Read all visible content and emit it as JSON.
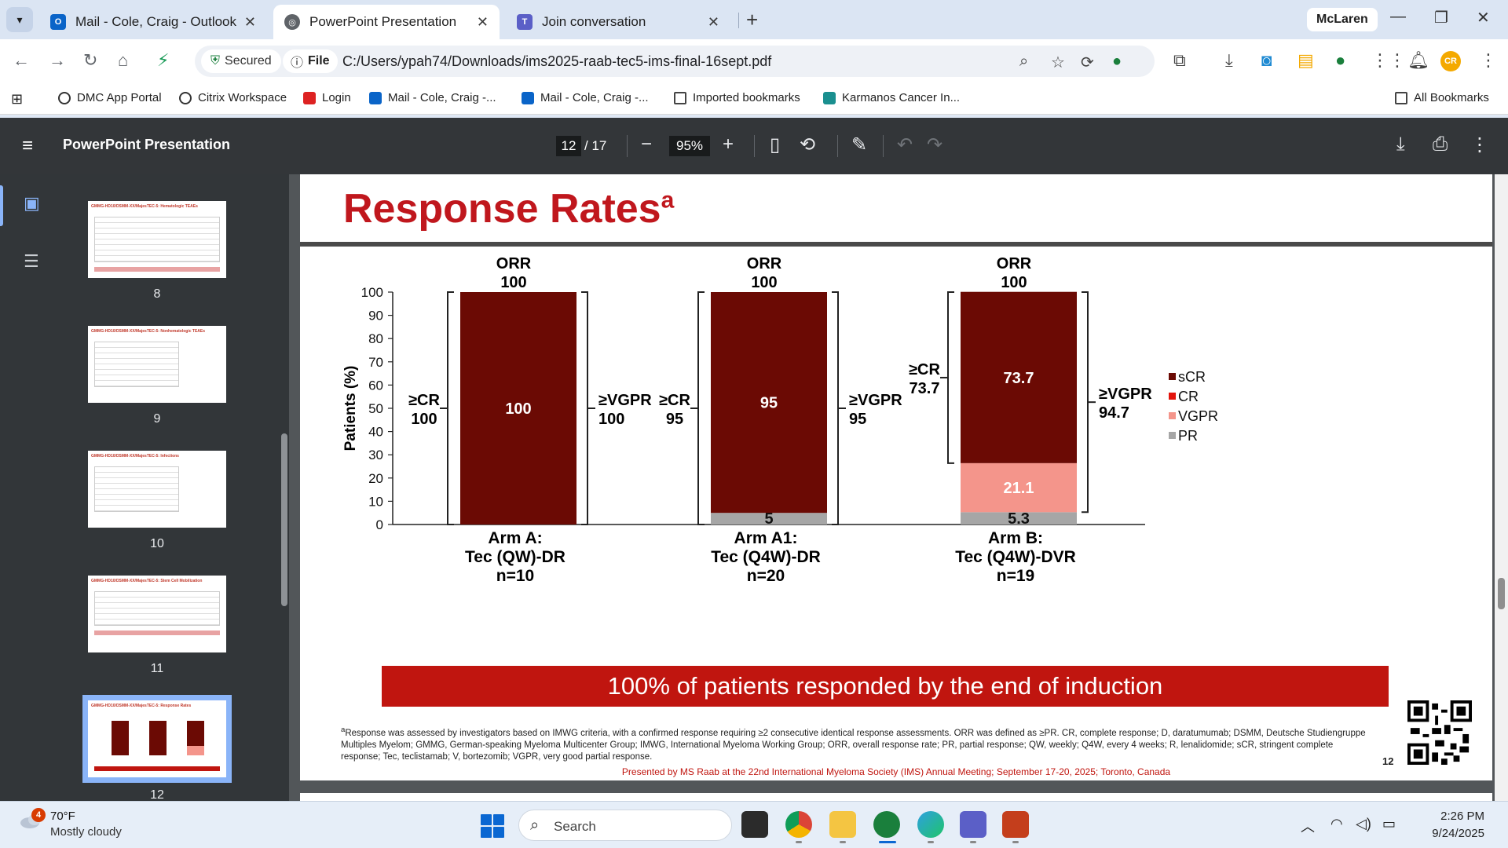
{
  "browser": {
    "tabs": [
      {
        "label": "Mail - Cole, Craig - Outlook",
        "icon": "outlook-icon"
      },
      {
        "label": "PowerPoint Presentation",
        "icon": "globe-icon"
      },
      {
        "label": "Join conversation",
        "icon": "teams-icon"
      }
    ],
    "profile": "McLaren",
    "security": "Secured",
    "scheme": "File",
    "url": "C:/Users/ypah74/Downloads/ims2025-raab-tec5-ims-final-16sept.pdf",
    "avatar": "CR",
    "bookmarks": [
      "DMC App Portal",
      "Citrix Workspace",
      "Login",
      "Mail - Cole, Craig -...",
      "Mail - Cole, Craig -...",
      "Imported bookmarks",
      "Karmanos Cancer In..."
    ],
    "all_bookmarks": "All Bookmarks"
  },
  "pdf": {
    "title": "PowerPoint Presentation",
    "page": "12",
    "total": "/ 17",
    "zoom": "95%",
    "thumbnails": [
      {
        "num": "8",
        "title": "GMMG-HD10/DSMM-XX/MajesTEC-5: Hematologic TEAEs"
      },
      {
        "num": "9",
        "title": "GMMG-HD10/DSMM-XX/MajesTEC-5: Nonhematologic TEAEs"
      },
      {
        "num": "10",
        "title": "GMMG-HD10/DSMM-XX/MajesTEC-5: Infections"
      },
      {
        "num": "11",
        "title": "GMMG-HD10/DSMM-XX/MajesTEC-5: Stem Cell Mobilization"
      },
      {
        "num": "12",
        "title": "GMMG-HD10/DSMM-XX/MajesTEC-5: Response Rates"
      }
    ]
  },
  "slide": {
    "title": "Response Rates",
    "title_sup": "a",
    "banner": "100% of patients responded by the end of induction",
    "footnote_sup": "a",
    "footnote": "Response was assessed by investigators based on IMWG criteria, with a confirmed response requiring ≥2 consecutive identical response assessments. ORR was defined as ≥PR. CR, complete response; D, daratumumab; DSMM, Deutsche Studiengruppe Multiples Myelom; GMMG, German-speaking Myeloma Multicenter Group; IMWG, International Myeloma Working Group; ORR, overall response rate; PR, partial response; QW, weekly; Q4W, every 4 weeks; R, lenalidomide; sCR, stringent complete response; Tec, teclistamab; V, bortezomib; VGPR, very good partial response.",
    "presented": "Presented by MS Raab at the 22nd International Myeloma Society (IMS) Annual Meeting; September 17-20, 2025; Toronto, Canada",
    "page_number": "12"
  },
  "chart_data": {
    "type": "bar",
    "stacked": true,
    "ylabel": "Patients (%)",
    "ylim": [
      0,
      100
    ],
    "yticks": [
      0,
      10,
      20,
      30,
      40,
      50,
      60,
      70,
      80,
      90,
      100
    ],
    "categories": [
      {
        "line1": "Arm A:",
        "line2": "Tec (QW)-DR",
        "line3": "n=10"
      },
      {
        "line1": "Arm A1:",
        "line2": "Tec (Q4W)-DR",
        "line3": "n=20"
      },
      {
        "line1": "Arm B:",
        "line2": "Tec (Q4W)-DVR",
        "line3": "n=19"
      }
    ],
    "series": [
      {
        "name": "PR",
        "color": "#a6a6a6",
        "values": [
          0,
          5,
          5.3
        ],
        "labels": [
          "",
          "5",
          "5.3"
        ]
      },
      {
        "name": "VGPR",
        "color": "#f4958b",
        "values": [
          0,
          0,
          21.1
        ],
        "labels": [
          "",
          "",
          "21.1"
        ]
      },
      {
        "name": "CR",
        "color": "#e3140c",
        "values": [
          0,
          0,
          0
        ],
        "labels": [
          "",
          "",
          ""
        ]
      },
      {
        "name": "sCR",
        "color": "#6b0a04",
        "values": [
          100,
          95,
          73.7
        ],
        "labels": [
          "100",
          "95",
          "73.7"
        ]
      }
    ],
    "legend": [
      "sCR",
      "CR",
      "VGPR",
      "PR"
    ],
    "legend_position": "right",
    "orr": {
      "label": "ORR",
      "values": [
        "100",
        "100",
        "100"
      ]
    },
    "cr_brackets": {
      "label": "≥CR",
      "values": [
        "100",
        "95",
        "73.7"
      ],
      "ranges": [
        [
          0,
          100
        ],
        [
          0,
          100
        ],
        [
          26.4,
          100
        ]
      ]
    },
    "vgpr_brackets": {
      "label": "≥VGPR",
      "values": [
        "100",
        "95",
        "94.7"
      ],
      "ranges": [
        [
          0,
          100
        ],
        [
          0,
          100
        ],
        [
          5.3,
          100
        ]
      ]
    }
  },
  "weather": {
    "temp": "70°F",
    "desc": "Mostly cloudy",
    "badge": "4"
  },
  "taskbar": {
    "search": "Search",
    "time": "2:26 PM",
    "date": "9/24/2025"
  }
}
